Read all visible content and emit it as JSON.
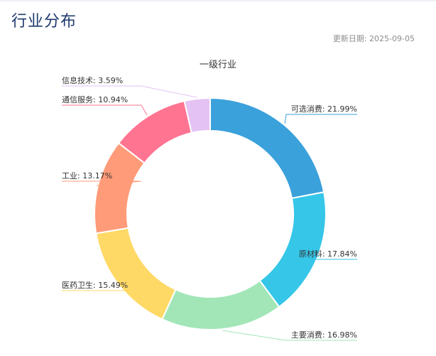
{
  "header": {
    "title": "行业分布",
    "update_date": "更新日期: 2025-09-05"
  },
  "chart_data": {
    "type": "pie",
    "variant": "donut",
    "title": "一级行业",
    "legend": "none",
    "slices": [
      {
        "name": "可选消费",
        "label": "可选消费: 21.99%",
        "value": 21.99,
        "color": "#3aa1db"
      },
      {
        "name": "原材料",
        "label": "原材料: 17.84%",
        "value": 17.84,
        "color": "#35c6e8"
      },
      {
        "name": "主要消费",
        "label": "主要消费: 16.98%",
        "value": 16.98,
        "color": "#a2e6b8"
      },
      {
        "name": "医药卫生",
        "label": "医药卫生: 15.49%",
        "value": 15.49,
        "color": "#ffd966"
      },
      {
        "name": "工业",
        "label": "工业: 13.17%",
        "value": 13.17,
        "color": "#ff9b78"
      },
      {
        "name": "通信服务",
        "label": "通信服务: 10.94%",
        "value": 10.94,
        "color": "#ff7491"
      },
      {
        "name": "信息技术",
        "label": "信息技术: 3.59%",
        "value": 3.59,
        "color": "#e5c2f4"
      }
    ]
  }
}
